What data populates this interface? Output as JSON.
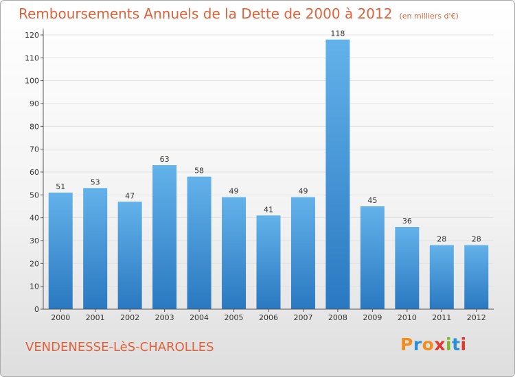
{
  "header": {
    "title": "Remboursements Annuels de la Dette de 2000 à 2012",
    "subtitle": "(en milliers d'€)"
  },
  "footer": {
    "town": "VENDENESSE-LèS-CHAROLLES",
    "logo": "Proxiti",
    "logo_colors": [
      "#f28c1c",
      "#2a8fd6",
      "#f28c1c",
      "#e03a2f",
      "#7ab928",
      "#2a8fd6",
      "#e03a2f"
    ]
  },
  "colors": {
    "title": "#e0623a",
    "bar_top": "#63b2ea",
    "bar_bottom": "#2a78c0",
    "grid": "#e2e2e2"
  },
  "chart_data": {
    "type": "bar",
    "title": "Remboursements Annuels de la Dette de 2000 à 2012",
    "subtitle": "(en milliers d'€)",
    "categories": [
      "2000",
      "2001",
      "2002",
      "2003",
      "2004",
      "2005",
      "2006",
      "2007",
      "2008",
      "2009",
      "2010",
      "2011",
      "2012"
    ],
    "values": [
      51,
      53,
      47,
      63,
      58,
      49,
      41,
      49,
      118,
      45,
      36,
      28,
      28
    ],
    "ylim": [
      0,
      120
    ],
    "yticks": [
      0,
      10,
      20,
      30,
      40,
      50,
      60,
      70,
      80,
      90,
      100,
      110,
      120
    ],
    "grid": true,
    "data_labels": true,
    "legend": "none"
  }
}
